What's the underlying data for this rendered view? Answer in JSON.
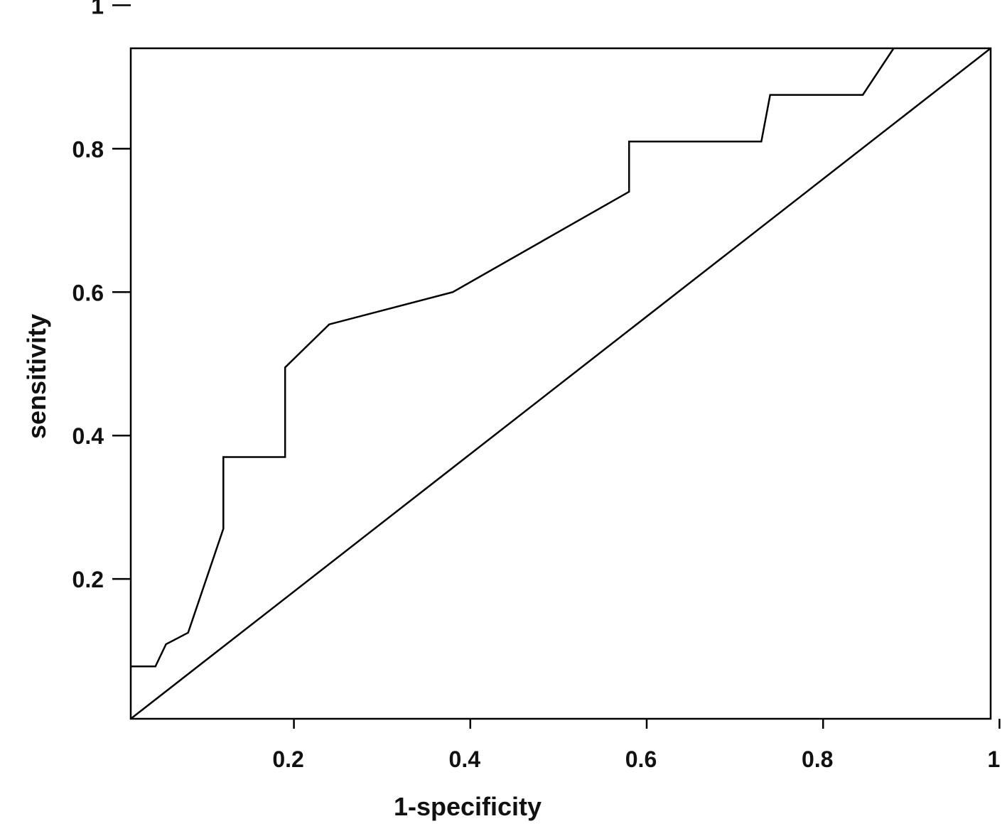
{
  "chart_data": {
    "type": "line",
    "title": "",
    "xlabel": "1-specificity",
    "ylabel": "sensitivity",
    "x_ticks": [
      {
        "value": 0.2,
        "label": "0.2"
      },
      {
        "value": 0.4,
        "label": "0.4"
      },
      {
        "value": 0.6,
        "label": "0.6"
      },
      {
        "value": 0.8,
        "label": "0.8"
      },
      {
        "value": 1.0,
        "label": "1"
      }
    ],
    "y_ticks": [
      {
        "value": 0.2,
        "label": "0.2"
      },
      {
        "value": 0.4,
        "label": "0.4"
      },
      {
        "value": 0.6,
        "label": "0.6"
      },
      {
        "value": 0.8,
        "label": "0.8"
      },
      {
        "value": 1.0,
        "label": "1"
      }
    ],
    "xlim": [
      0.015,
      0.99
    ],
    "ylim": [
      0.005,
      0.94
    ],
    "grid": false,
    "legend": "none",
    "series": [
      {
        "points": [
          [
            0.015,
            0.078
          ],
          [
            0.043,
            0.078
          ],
          [
            0.055,
            0.109
          ],
          [
            0.08,
            0.125
          ],
          [
            0.12,
            0.27
          ],
          [
            0.12,
            0.37
          ],
          [
            0.19,
            0.37
          ],
          [
            0.19,
            0.495
          ],
          [
            0.24,
            0.555
          ],
          [
            0.38,
            0.6
          ],
          [
            0.58,
            0.74
          ],
          [
            0.58,
            0.81
          ],
          [
            0.73,
            0.81
          ],
          [
            0.74,
            0.875
          ],
          [
            0.845,
            0.875
          ],
          [
            0.88,
            0.94
          ]
        ]
      },
      {
        "points": [
          [
            0.015,
            0.005
          ],
          [
            0.99,
            0.94
          ]
        ]
      }
    ]
  }
}
